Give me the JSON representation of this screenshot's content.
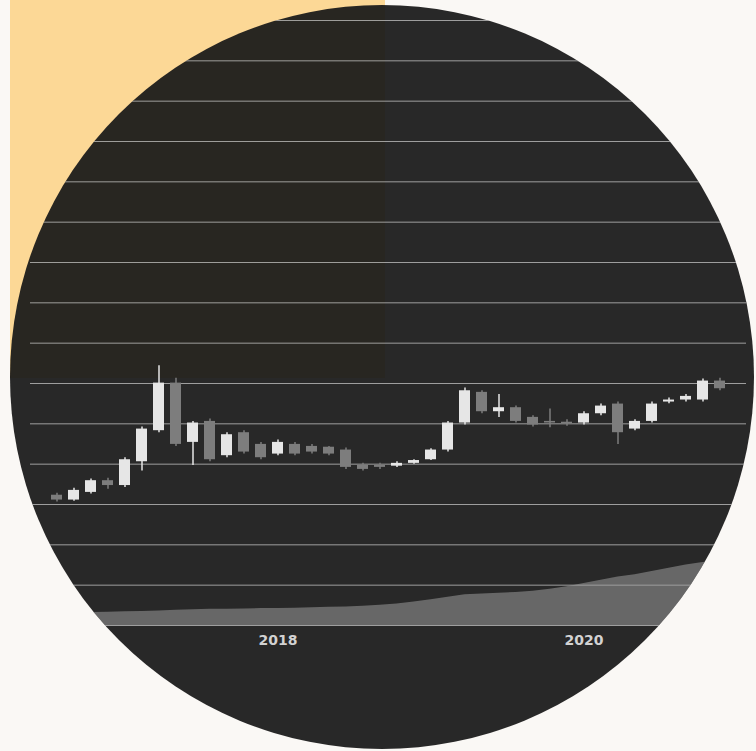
{
  "chart_data": {
    "type": "candlestick",
    "categories": [
      null,
      null,
      null,
      null,
      null,
      null,
      null,
      null,
      null,
      null,
      null,
      null,
      null,
      "2018",
      null,
      null,
      null,
      null,
      null,
      null,
      null,
      null,
      null,
      null,
      null,
      null,
      null,
      null,
      null,
      null,
      null,
      "2020",
      null,
      null,
      null,
      null,
      null,
      null,
      null,
      null
    ],
    "open": [
      32.3,
      31.1,
      33.0,
      35.9,
      34.7,
      40.6,
      48.3,
      60.1,
      45.4,
      50.6,
      42.1,
      47.8,
      44.9,
      42.5,
      44.9,
      44.4,
      44.2,
      43.5,
      39.7,
      39.7,
      39.5,
      40.2,
      41.1,
      43.5,
      50.2,
      57.8,
      53.0,
      54.0,
      51.6,
      50.6,
      50.4,
      50.2,
      52.5,
      54.9,
      48.7,
      50.6,
      55.4,
      55.9,
      55.9,
      60.6
    ],
    "high": [
      32.8,
      34.0,
      36.3,
      36.5,
      41.6,
      49.2,
      64.4,
      61.3,
      50.6,
      51.2,
      47.8,
      48.3,
      45.4,
      46.0,
      45.4,
      44.9,
      44.4,
      44.0,
      40.2,
      40.2,
      40.6,
      41.1,
      43.8,
      50.6,
      58.9,
      58.2,
      57.3,
      54.4,
      52.0,
      53.7,
      51.0,
      53.0,
      54.9,
      55.4,
      51.0,
      55.4,
      56.4,
      57.3,
      61.1,
      61.3
    ],
    "low": [
      30.6,
      30.8,
      32.6,
      33.8,
      34.2,
      38.3,
      47.8,
      44.4,
      39.7,
      40.6,
      41.6,
      42.5,
      41.1,
      42.1,
      42.1,
      42.5,
      42.1,
      38.7,
      38.3,
      38.7,
      39.2,
      40.0,
      40.9,
      43.0,
      49.7,
      52.5,
      51.6,
      50.2,
      49.2,
      49.0,
      49.4,
      49.7,
      52.0,
      44.9,
      48.3,
      50.2,
      55.0,
      55.4,
      55.4,
      58.2
    ],
    "close": [
      31.1,
      33.5,
      35.9,
      34.7,
      41.1,
      48.7,
      60.1,
      44.9,
      50.2,
      41.1,
      47.3,
      43.0,
      41.6,
      45.4,
      42.5,
      43.0,
      42.5,
      39.2,
      38.7,
      39.2,
      40.2,
      40.9,
      43.5,
      50.2,
      58.2,
      53.0,
      54.0,
      50.6,
      49.7,
      50.2,
      50.0,
      52.5,
      54.4,
      47.8,
      50.6,
      54.9,
      55.9,
      56.8,
      60.6,
      58.7
    ],
    "volume": [
      3,
      3,
      3.2,
      3.3,
      3.4,
      3.5,
      3.6,
      3.8,
      3.9,
      4,
      4,
      4.1,
      4.2,
      4.2,
      4.3,
      4.4,
      4.5,
      4.6,
      4.8,
      5,
      5.3,
      5.8,
      6.4,
      7,
      7.6,
      7.8,
      8,
      8.2,
      8.5,
      9,
      9.6,
      10.4,
      11.2,
      12,
      12.6,
      13.4,
      14.2,
      15,
      15.6,
      16
    ],
    "colors": [
      "#7d7d7d",
      "#e6e6e6",
      "#e6e6e6",
      "#7d7d7d",
      "#e6e6e6",
      "#e6e6e6",
      "#e6e6e6",
      "#7d7d7d",
      "#e6e6e6",
      "#7d7d7d",
      "#e6e6e6",
      "#7d7d7d",
      "#7d7d7d",
      "#e6e6e6",
      "#7d7d7d",
      "#7d7d7d",
      "#7d7d7d",
      "#7d7d7d",
      "#7d7d7d",
      "#7d7d7d",
      "#e6e6e6",
      "#e6e6e6",
      "#e6e6e6",
      "#e6e6e6",
      "#e6e6e6",
      "#7d7d7d",
      "#e6e6e6",
      "#7d7d7d",
      "#7d7d7d",
      "#7d7d7d",
      "#7d7d7d",
      "#e6e6e6",
      "#e6e6e6",
      "#7d7d7d",
      "#e6e6e6",
      "#e6e6e6",
      "#e6e6e6",
      "#e6e6e6",
      "#e6e6e6",
      "#7d7d7d"
    ],
    "ylim": [
      0,
      150
    ],
    "yticks": [
      0,
      10,
      20,
      30,
      40,
      50,
      60,
      70,
      80,
      90,
      100,
      110,
      120,
      130,
      140,
      150
    ],
    "grid": true,
    "tick_labels": "x"
  }
}
